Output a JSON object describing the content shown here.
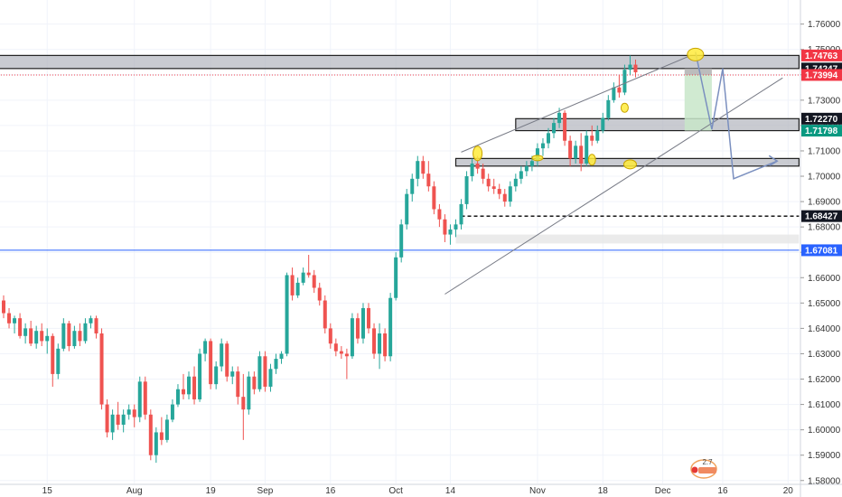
{
  "colors": {
    "up": "#26a69a",
    "down": "#ef5350",
    "grid": "#f0f3fa",
    "axis_text": "#333333",
    "zone_fill": "#b2b5be",
    "zone_border": "#1f1f1f",
    "blue_line": "#2962ff",
    "trend_line": "#787b86",
    "arrow": "#7a8fbf",
    "ellipse_fill": "#ffeb3b",
    "target_fill": "#c8e6c9",
    "stop_fill": "#b0b0b0"
  },
  "chart_data": {
    "type": "candlestick",
    "title": "",
    "xlabel": "",
    "ylabel": "",
    "ylim": [
      1.5735,
      1.7695
    ],
    "grid": true,
    "y_ticks": [
      {
        "value": 1.58,
        "label": "1.58000"
      },
      {
        "value": 1.59,
        "label": "1.59000"
      },
      {
        "value": 1.6,
        "label": "1.60000"
      },
      {
        "value": 1.61,
        "label": "1.61000"
      },
      {
        "value": 1.62,
        "label": "1.62000"
      },
      {
        "value": 1.63,
        "label": "1.63000"
      },
      {
        "value": 1.64,
        "label": "1.64000"
      },
      {
        "value": 1.65,
        "label": "1.65000"
      },
      {
        "value": 1.66,
        "label": "1.66000"
      },
      {
        "value": 1.67,
        "label": "1.67000"
      },
      {
        "value": 1.68,
        "label": "1.68000"
      },
      {
        "value": 1.69,
        "label": "1.69000"
      },
      {
        "value": 1.7,
        "label": "1.70000"
      },
      {
        "value": 1.71,
        "label": "1.71000"
      },
      {
        "value": 1.72,
        "label": "1.72000"
      },
      {
        "value": 1.73,
        "label": "1.73000"
      },
      {
        "value": 1.74,
        "label": "1.74000"
      },
      {
        "value": 1.75,
        "label": "1.75000"
      },
      {
        "value": 1.76,
        "label": "1.76000"
      }
    ],
    "x_ticks": [
      {
        "index": 8,
        "label": "15"
      },
      {
        "index": 24,
        "label": "Aug"
      },
      {
        "index": 38,
        "label": "19"
      },
      {
        "index": 48,
        "label": "Sep"
      },
      {
        "index": 60,
        "label": "16"
      },
      {
        "index": 72,
        "label": "Oct"
      },
      {
        "index": 82,
        "label": "14"
      },
      {
        "index": 98,
        "label": "Nov"
      },
      {
        "index": 110,
        "label": "18"
      },
      {
        "index": 121,
        "label": "Dec"
      },
      {
        "index": 132,
        "label": "16"
      },
      {
        "index": 144,
        "label": "20"
      }
    ],
    "price_labels": [
      {
        "value": 1.74763,
        "label": "1.74763",
        "bg": "#f23645",
        "fg": "#ffffff"
      },
      {
        "value": 1.74247,
        "label": "1.74247",
        "bg": "#131722",
        "fg": "#ffffff"
      },
      {
        "value": 1.73994,
        "label": "1.73994",
        "bg": "#f23645",
        "fg": "#ffffff"
      },
      {
        "value": 1.7227,
        "label": "1.72270",
        "bg": "#131722",
        "fg": "#ffffff"
      },
      {
        "value": 1.71798,
        "label": "1.71798",
        "bg": "#089981",
        "fg": "#ffffff"
      },
      {
        "value": 1.68427,
        "label": "1.68427",
        "bg": "#131722",
        "fg": "#ffffff"
      },
      {
        "value": 1.67081,
        "label": "1.67081",
        "bg": "#2962ff",
        "fg": "#ffffff"
      }
    ],
    "zones": [
      {
        "i0": -2,
        "i1": 146,
        "y0": 1.74247,
        "y1": 1.74763
      },
      {
        "i0": 94,
        "i1": 146,
        "y0": 1.71798,
        "y1": 1.7227
      },
      {
        "i0": 83,
        "i1": 146,
        "y0": 1.704,
        "y1": 1.707
      }
    ],
    "light_zone": {
      "i0": 83,
      "i1": 146,
      "y0": 1.6735,
      "y1": 1.677
    },
    "horizontal_lines": [
      {
        "value": 1.68427,
        "style": "dashed",
        "i0": 84,
        "i1": 146
      },
      {
        "value": 1.67081,
        "style": "solid",
        "i0": -2,
        "i1": 146
      },
      {
        "value": 1.73994,
        "style": "dotted",
        "i0": -2,
        "i1": 146
      }
    ],
    "channel_lines": [
      {
        "i0": 84,
        "y0": 1.7095,
        "i1": 126,
        "y1": 1.7475
      },
      {
        "i0": 81,
        "y0": 1.6535,
        "i1": 143,
        "y1": 1.7388
      }
    ],
    "arrow_path": [
      {
        "i": 127,
        "y": 1.749
      },
      {
        "i": 130,
        "y": 1.7185
      },
      {
        "i": 132,
        "y": 1.7425
      },
      {
        "i": 134,
        "y": 1.699
      },
      {
        "i": 142,
        "y": 1.706
      }
    ],
    "target_box": {
      "i0": 125,
      "i1": 130,
      "y0": 1.71798,
      "y1": 1.73994
    },
    "stop_box": {
      "i0": 125,
      "i1": 130,
      "y0": 1.73994,
      "y1": 1.74247
    },
    "ellipses": [
      {
        "i": 87,
        "y": 1.709,
        "rx": 5,
        "ry": 8
      },
      {
        "i": 98,
        "y": 1.7072,
        "rx": 6,
        "ry": 3
      },
      {
        "i": 108,
        "y": 1.7065,
        "rx": 4,
        "ry": 6
      },
      {
        "i": 114,
        "y": 1.727,
        "rx": 4,
        "ry": 5
      },
      {
        "i": 115,
        "y": 1.7047,
        "rx": 7,
        "ry": 5
      },
      {
        "i": 127,
        "y": 1.748,
        "rx": 9,
        "ry": 7
      }
    ],
    "candles": [
      [
        1.651,
        1.653,
        1.644,
        1.646
      ],
      [
        1.646,
        1.648,
        1.64,
        1.642
      ],
      [
        1.642,
        1.645,
        1.638,
        1.644
      ],
      [
        1.644,
        1.646,
        1.636,
        1.637
      ],
      [
        1.637,
        1.642,
        1.634,
        1.64
      ],
      [
        1.64,
        1.643,
        1.633,
        1.634
      ],
      [
        1.634,
        1.641,
        1.632,
        1.639
      ],
      [
        1.639,
        1.642,
        1.633,
        1.635
      ],
      [
        1.635,
        1.64,
        1.63,
        1.637
      ],
      [
        1.637,
        1.638,
        1.617,
        1.622
      ],
      [
        1.622,
        1.634,
        1.62,
        1.632
      ],
      [
        1.632,
        1.644,
        1.631,
        1.642
      ],
      [
        1.642,
        1.643,
        1.631,
        1.633
      ],
      [
        1.633,
        1.641,
        1.632,
        1.639
      ],
      [
        1.639,
        1.642,
        1.633,
        1.635
      ],
      [
        1.635,
        1.644,
        1.634,
        1.642
      ],
      [
        1.642,
        1.645,
        1.64,
        1.644
      ],
      [
        1.644,
        1.645,
        1.636,
        1.638
      ],
      [
        1.638,
        1.64,
        1.608,
        1.61
      ],
      [
        1.61,
        1.612,
        1.597,
        1.599
      ],
      [
        1.599,
        1.608,
        1.596,
        1.606
      ],
      [
        1.606,
        1.611,
        1.6,
        1.602
      ],
      [
        1.602,
        1.608,
        1.599,
        1.606
      ],
      [
        1.606,
        1.61,
        1.604,
        1.608
      ],
      [
        1.608,
        1.61,
        1.601,
        1.605
      ],
      [
        1.605,
        1.621,
        1.603,
        1.619
      ],
      [
        1.619,
        1.621,
        1.604,
        1.606
      ],
      [
        1.606,
        1.608,
        1.588,
        1.59
      ],
      [
        1.59,
        1.601,
        1.587,
        1.599
      ],
      [
        1.599,
        1.605,
        1.594,
        1.596
      ],
      [
        1.596,
        1.606,
        1.595,
        1.604
      ],
      [
        1.604,
        1.612,
        1.603,
        1.61
      ],
      [
        1.61,
        1.618,
        1.609,
        1.616
      ],
      [
        1.616,
        1.622,
        1.612,
        1.614
      ],
      [
        1.614,
        1.623,
        1.612,
        1.621
      ],
      [
        1.621,
        1.625,
        1.61,
        1.612
      ],
      [
        1.612,
        1.632,
        1.611,
        1.63
      ],
      [
        1.63,
        1.636,
        1.627,
        1.635
      ],
      [
        1.635,
        1.636,
        1.616,
        1.618
      ],
      [
        1.618,
        1.627,
        1.616,
        1.625
      ],
      [
        1.625,
        1.636,
        1.623,
        1.634
      ],
      [
        1.634,
        1.635,
        1.619,
        1.621
      ],
      [
        1.621,
        1.625,
        1.618,
        1.623
      ],
      [
        1.623,
        1.625,
        1.61,
        1.613
      ],
      [
        1.613,
        1.622,
        1.596,
        1.608
      ],
      [
        1.608,
        1.623,
        1.606,
        1.621
      ],
      [
        1.621,
        1.623,
        1.614,
        1.616
      ],
      [
        1.616,
        1.631,
        1.615,
        1.629
      ],
      [
        1.629,
        1.631,
        1.615,
        1.617
      ],
      [
        1.617,
        1.626,
        1.615,
        1.624
      ],
      [
        1.624,
        1.63,
        1.622,
        1.628
      ],
      [
        1.628,
        1.631,
        1.626,
        1.63
      ],
      [
        1.63,
        1.662,
        1.629,
        1.661
      ],
      [
        1.661,
        1.664,
        1.651,
        1.653
      ],
      [
        1.653,
        1.66,
        1.652,
        1.658
      ],
      [
        1.658,
        1.664,
        1.657,
        1.662
      ],
      [
        1.662,
        1.669,
        1.66,
        1.661
      ],
      [
        1.661,
        1.663,
        1.654,
        1.656
      ],
      [
        1.656,
        1.658,
        1.649,
        1.651
      ],
      [
        1.651,
        1.653,
        1.638,
        1.64
      ],
      [
        1.64,
        1.642,
        1.632,
        1.634
      ],
      [
        1.634,
        1.636,
        1.629,
        1.631
      ],
      [
        1.631,
        1.633,
        1.628,
        1.63
      ],
      [
        1.63,
        1.632,
        1.62,
        1.629
      ],
      [
        1.629,
        1.646,
        1.628,
        1.644
      ],
      [
        1.644,
        1.646,
        1.634,
        1.636
      ],
      [
        1.636,
        1.65,
        1.634,
        1.648
      ],
      [
        1.648,
        1.65,
        1.638,
        1.64
      ],
      [
        1.64,
        1.642,
        1.628,
        1.63
      ],
      [
        1.63,
        1.642,
        1.624,
        1.638
      ],
      [
        1.638,
        1.64,
        1.627,
        1.629
      ],
      [
        1.629,
        1.654,
        1.627,
        1.652
      ],
      [
        1.652,
        1.67,
        1.651,
        1.668
      ],
      [
        1.668,
        1.683,
        1.666,
        1.681
      ],
      [
        1.681,
        1.695,
        1.679,
        1.693
      ],
      [
        1.693,
        1.701,
        1.69,
        1.699
      ],
      [
        1.699,
        1.708,
        1.696,
        1.706
      ],
      [
        1.706,
        1.708,
        1.699,
        1.701
      ],
      [
        1.701,
        1.706,
        1.694,
        1.696
      ],
      [
        1.696,
        1.698,
        1.685,
        1.687
      ],
      [
        1.687,
        1.689,
        1.68,
        1.683
      ],
      [
        1.683,
        1.685,
        1.674,
        1.677
      ],
      [
        1.677,
        1.681,
        1.673,
        1.679
      ],
      [
        1.679,
        1.683,
        1.676,
        1.681
      ],
      [
        1.681,
        1.691,
        1.679,
        1.689
      ],
      [
        1.689,
        1.702,
        1.687,
        1.7
      ],
      [
        1.7,
        1.707,
        1.698,
        1.705
      ],
      [
        1.705,
        1.708,
        1.701,
        1.703
      ],
      [
        1.703,
        1.705,
        1.697,
        1.699
      ],
      [
        1.699,
        1.701,
        1.694,
        1.696
      ],
      [
        1.696,
        1.699,
        1.693,
        1.695
      ],
      [
        1.695,
        1.697,
        1.691,
        1.693
      ],
      [
        1.693,
        1.695,
        1.688,
        1.69
      ],
      [
        1.69,
        1.698,
        1.688,
        1.696
      ],
      [
        1.696,
        1.701,
        1.694,
        1.699
      ],
      [
        1.699,
        1.704,
        1.697,
        1.702
      ],
      [
        1.702,
        1.706,
        1.7,
        1.704
      ],
      [
        1.704,
        1.708,
        1.702,
        1.706
      ],
      [
        1.706,
        1.713,
        1.704,
        1.711
      ],
      [
        1.711,
        1.715,
        1.708,
        1.713
      ],
      [
        1.713,
        1.719,
        1.711,
        1.717
      ],
      [
        1.717,
        1.723,
        1.715,
        1.721
      ],
      [
        1.721,
        1.727,
        1.719,
        1.725
      ],
      [
        1.725,
        1.726,
        1.712,
        1.714
      ],
      [
        1.714,
        1.716,
        1.704,
        1.707
      ],
      [
        1.707,
        1.714,
        1.705,
        1.712
      ],
      [
        1.712,
        1.717,
        1.702,
        1.705
      ],
      [
        1.705,
        1.718,
        1.704,
        1.716
      ],
      [
        1.716,
        1.72,
        1.712,
        1.714
      ],
      [
        1.714,
        1.72,
        1.713,
        1.718
      ],
      [
        1.718,
        1.725,
        1.717,
        1.723
      ],
      [
        1.723,
        1.732,
        1.722,
        1.73
      ],
      [
        1.73,
        1.737,
        1.729,
        1.735
      ],
      [
        1.735,
        1.74,
        1.731,
        1.733
      ],
      [
        1.733,
        1.744,
        1.732,
        1.742
      ],
      [
        1.742,
        1.7476,
        1.74,
        1.744
      ],
      [
        1.744,
        1.746,
        1.739,
        1.741
      ]
    ]
  },
  "badge": {
    "text": "2.7"
  }
}
